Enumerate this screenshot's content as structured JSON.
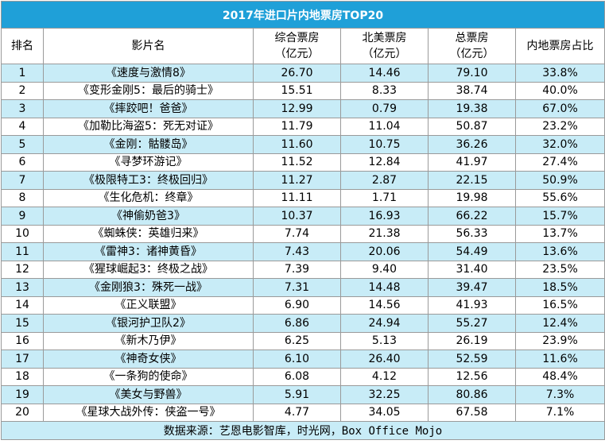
{
  "title": "2017年进口片内地票房TOP20",
  "headers": {
    "rank": "排名",
    "film": "影片名",
    "china_line1": "综合票房",
    "china_line2": "（亿元）",
    "na_line1": "北美票房",
    "na_line2": "（亿元）",
    "total_line1": "总票房",
    "total_line2": "（亿元）",
    "share": "内地票房占比"
  },
  "source": "数据来源：艺恩电影智库，时光网，Box Office Mojo",
  "chart_data": {
    "type": "table",
    "title": "2017年进口片内地票房TOP20",
    "columns": [
      "排名",
      "影片名",
      "综合票房（亿元）",
      "北美票房（亿元）",
      "总票房（亿元）",
      "内地票房占比"
    ],
    "rows": [
      {
        "rank": "1",
        "film": "《速度与激情8》",
        "china": "26.70",
        "na": "14.46",
        "total": "79.10",
        "share": "33.8%"
      },
      {
        "rank": "2",
        "film": "《变形金刚5：最后的骑士》",
        "china": "15.51",
        "na": "8.33",
        "total": "38.74",
        "share": "40.0%"
      },
      {
        "rank": "3",
        "film": "《摔跤吧！爸爸》",
        "china": "12.99",
        "na": "0.79",
        "total": "19.38",
        "share": "67.0%"
      },
      {
        "rank": "4",
        "film": "《加勒比海盗5：死无对证》",
        "china": "11.79",
        "na": "11.04",
        "total": "50.87",
        "share": "23.2%"
      },
      {
        "rank": "5",
        "film": "《金刚：骷髅岛》",
        "china": "11.60",
        "na": "10.75",
        "total": "36.26",
        "share": "32.0%"
      },
      {
        "rank": "6",
        "film": "《寻梦环游记》",
        "china": "11.52",
        "na": "12.84",
        "total": "41.97",
        "share": "27.4%"
      },
      {
        "rank": "7",
        "film": "《极限特工3：终极回归》",
        "china": "11.27",
        "na": "2.87",
        "total": "22.15",
        "share": "50.9%"
      },
      {
        "rank": "8",
        "film": "《生化危机：终章》",
        "china": "11.11",
        "na": "1.71",
        "total": "19.98",
        "share": "55.6%"
      },
      {
        "rank": "9",
        "film": "《神偷奶爸3》",
        "china": "10.37",
        "na": "16.93",
        "total": "66.22",
        "share": "15.7%"
      },
      {
        "rank": "10",
        "film": "《蜘蛛侠：英雄归来》",
        "china": "7.74",
        "na": "21.38",
        "total": "56.33",
        "share": "13.7%"
      },
      {
        "rank": "11",
        "film": "《雷神3：诸神黄昏》",
        "china": "7.43",
        "na": "20.06",
        "total": "54.49",
        "share": "13.6%"
      },
      {
        "rank": "12",
        "film": "《猩球崛起3：终极之战》",
        "china": "7.39",
        "na": "9.40",
        "total": "31.40",
        "share": "23.5%"
      },
      {
        "rank": "13",
        "film": "《金刚狼3：殊死一战》",
        "china": "7.31",
        "na": "14.48",
        "total": "39.47",
        "share": "18.5%"
      },
      {
        "rank": "14",
        "film": "《正义联盟》",
        "china": "6.90",
        "na": "14.56",
        "total": "41.93",
        "share": "16.5%"
      },
      {
        "rank": "15",
        "film": "《银河护卫队2》",
        "china": "6.86",
        "na": "24.94",
        "total": "55.27",
        "share": "12.4%"
      },
      {
        "rank": "16",
        "film": "《新木乃伊》",
        "china": "6.25",
        "na": "5.13",
        "total": "26.19",
        "share": "23.9%"
      },
      {
        "rank": "17",
        "film": "《神奇女侠》",
        "china": "6.10",
        "na": "26.40",
        "total": "52.59",
        "share": "11.6%"
      },
      {
        "rank": "18",
        "film": "《一条狗的使命》",
        "china": "6.08",
        "na": "4.12",
        "total": "12.56",
        "share": "48.4%"
      },
      {
        "rank": "19",
        "film": "《美女与野兽》",
        "china": "5.91",
        "na": "32.25",
        "total": "80.86",
        "share": "7.3%"
      },
      {
        "rank": "20",
        "film": "《星球大战外传：侠盗一号》",
        "china": "4.77",
        "na": "34.05",
        "total": "67.58",
        "share": "7.1%"
      }
    ]
  },
  "colors": {
    "title_bg": "#1fa0d8",
    "title_text": "#ffffff",
    "alt_row_bg": "#c8ecf7",
    "border": "#9a9a9a"
  }
}
